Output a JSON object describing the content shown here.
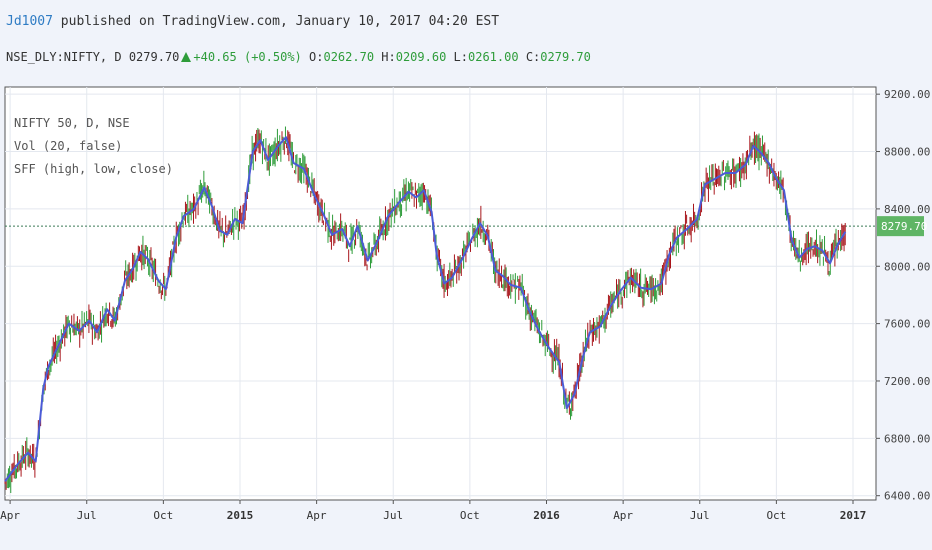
{
  "header": {
    "author": "Jd1007",
    "publish_text": " published on TradingView.com, January 10, 2017 04:20 EST"
  },
  "quote": {
    "symbol": "NSE_DLY:NIFTY, D",
    "price": "0279.70",
    "change": "+40.65 (+0.50%)",
    "o_label": "O:",
    "o_val": "0262.70",
    "h_label": "H:",
    "h_val": "0209.60",
    "l_label": "L:",
    "l_val": "0261.00",
    "c_label": "C:",
    "c_val": "0279.70"
  },
  "legend": [
    "NIFTY 50, D, NSE",
    "Vol (20, false)",
    "SFF (high, low, close)"
  ],
  "colors": {
    "up": "#2e9c3a",
    "down": "#a8161c",
    "ma": "#4b5bd6",
    "price_tag": "#5fb565",
    "grid": "#e4e8ef"
  },
  "chart_data": {
    "type": "line",
    "title": "NIFTY 50, D, NSE",
    "y_ticks": [
      "9200.00",
      "8800.00",
      "8400.00",
      "8000.00",
      "7600.00",
      "7200.00",
      "6800.00",
      "6400.00"
    ],
    "ylim": [
      6370,
      9250
    ],
    "x_ticks": [
      {
        "label": "Apr",
        "x": 0.5,
        "bold": false
      },
      {
        "label": "Jul",
        "x": 3.5,
        "bold": false
      },
      {
        "label": "Oct",
        "x": 6.5,
        "bold": false
      },
      {
        "label": "2015",
        "x": 9.5,
        "bold": true
      },
      {
        "label": "Apr",
        "x": 12.5,
        "bold": false
      },
      {
        "label": "Jul",
        "x": 15.5,
        "bold": false
      },
      {
        "label": "Oct",
        "x": 18.5,
        "bold": false
      },
      {
        "label": "2016",
        "x": 21.5,
        "bold": true
      },
      {
        "label": "Apr",
        "x": 24.5,
        "bold": false
      },
      {
        "label": "Jul",
        "x": 27.5,
        "bold": false
      },
      {
        "label": "Oct",
        "x": 30.5,
        "bold": false
      },
      {
        "label": "2017",
        "x": 33.5,
        "bold": true
      }
    ],
    "xlim": [
      0.3,
      34.4
    ],
    "last_price": 8279.7,
    "last_price_label": "8279.70",
    "series": [
      {
        "name": "SFF (high, low, close)",
        "points": [
          [
            0.3,
            6500
          ],
          [
            0.8,
            6620
          ],
          [
            1.2,
            6700
          ],
          [
            1.5,
            6640
          ],
          [
            1.8,
            7150
          ],
          [
            2.0,
            7300
          ],
          [
            2.4,
            7450
          ],
          [
            2.8,
            7600
          ],
          [
            3.2,
            7550
          ],
          [
            3.6,
            7620
          ],
          [
            3.9,
            7540
          ],
          [
            4.3,
            7700
          ],
          [
            4.6,
            7620
          ],
          [
            5.0,
            7900
          ],
          [
            5.3,
            7980
          ],
          [
            5.6,
            8100
          ],
          [
            5.9,
            8050
          ],
          [
            6.3,
            7900
          ],
          [
            6.6,
            7840
          ],
          [
            7.0,
            8200
          ],
          [
            7.3,
            8350
          ],
          [
            7.7,
            8400
          ],
          [
            8.1,
            8550
          ],
          [
            8.4,
            8420
          ],
          [
            8.7,
            8250
          ],
          [
            9.0,
            8220
          ],
          [
            9.3,
            8330
          ],
          [
            9.6,
            8300
          ],
          [
            10.0,
            8800
          ],
          [
            10.3,
            8880
          ],
          [
            10.6,
            8740
          ],
          [
            11.0,
            8840
          ],
          [
            11.3,
            8900
          ],
          [
            11.6,
            8720
          ],
          [
            12.0,
            8680
          ],
          [
            12.4,
            8500
          ],
          [
            12.8,
            8350
          ],
          [
            13.1,
            8220
          ],
          [
            13.5,
            8260
          ],
          [
            13.8,
            8140
          ],
          [
            14.1,
            8280
          ],
          [
            14.5,
            8040
          ],
          [
            14.9,
            8180
          ],
          [
            15.3,
            8350
          ],
          [
            15.7,
            8440
          ],
          [
            16.1,
            8520
          ],
          [
            16.4,
            8480
          ],
          [
            16.7,
            8530
          ],
          [
            17.0,
            8380
          ],
          [
            17.2,
            8080
          ],
          [
            17.5,
            7880
          ],
          [
            17.8,
            7920
          ],
          [
            18.2,
            8050
          ],
          [
            18.6,
            8200
          ],
          [
            18.9,
            8300
          ],
          [
            19.2,
            8210
          ],
          [
            19.5,
            7970
          ],
          [
            19.8,
            7930
          ],
          [
            20.1,
            7870
          ],
          [
            20.5,
            7850
          ],
          [
            20.8,
            7700
          ],
          [
            21.2,
            7550
          ],
          [
            21.6,
            7430
          ],
          [
            22.0,
            7330
          ],
          [
            22.3,
            7010
          ],
          [
            22.6,
            7110
          ],
          [
            22.9,
            7350
          ],
          [
            23.2,
            7540
          ],
          [
            23.6,
            7580
          ],
          [
            24.0,
            7720
          ],
          [
            24.4,
            7830
          ],
          [
            24.8,
            7920
          ],
          [
            25.2,
            7850
          ],
          [
            25.6,
            7840
          ],
          [
            26.0,
            7880
          ],
          [
            26.3,
            8080
          ],
          [
            26.6,
            8200
          ],
          [
            27.0,
            8260
          ],
          [
            27.4,
            8330
          ],
          [
            27.7,
            8570
          ],
          [
            28.1,
            8610
          ],
          [
            28.5,
            8650
          ],
          [
            28.9,
            8650
          ],
          [
            29.3,
            8710
          ],
          [
            29.6,
            8840
          ],
          [
            29.9,
            8790
          ],
          [
            30.2,
            8720
          ],
          [
            30.5,
            8610
          ],
          [
            30.8,
            8530
          ],
          [
            31.1,
            8180
          ],
          [
            31.4,
            8060
          ],
          [
            31.7,
            8120
          ],
          [
            32.0,
            8140
          ],
          [
            32.3,
            8110
          ],
          [
            32.6,
            8020
          ],
          [
            32.9,
            8150
          ],
          [
            33.2,
            8240
          ]
        ]
      }
    ],
    "grid": true,
    "legend_position": "top-left"
  }
}
